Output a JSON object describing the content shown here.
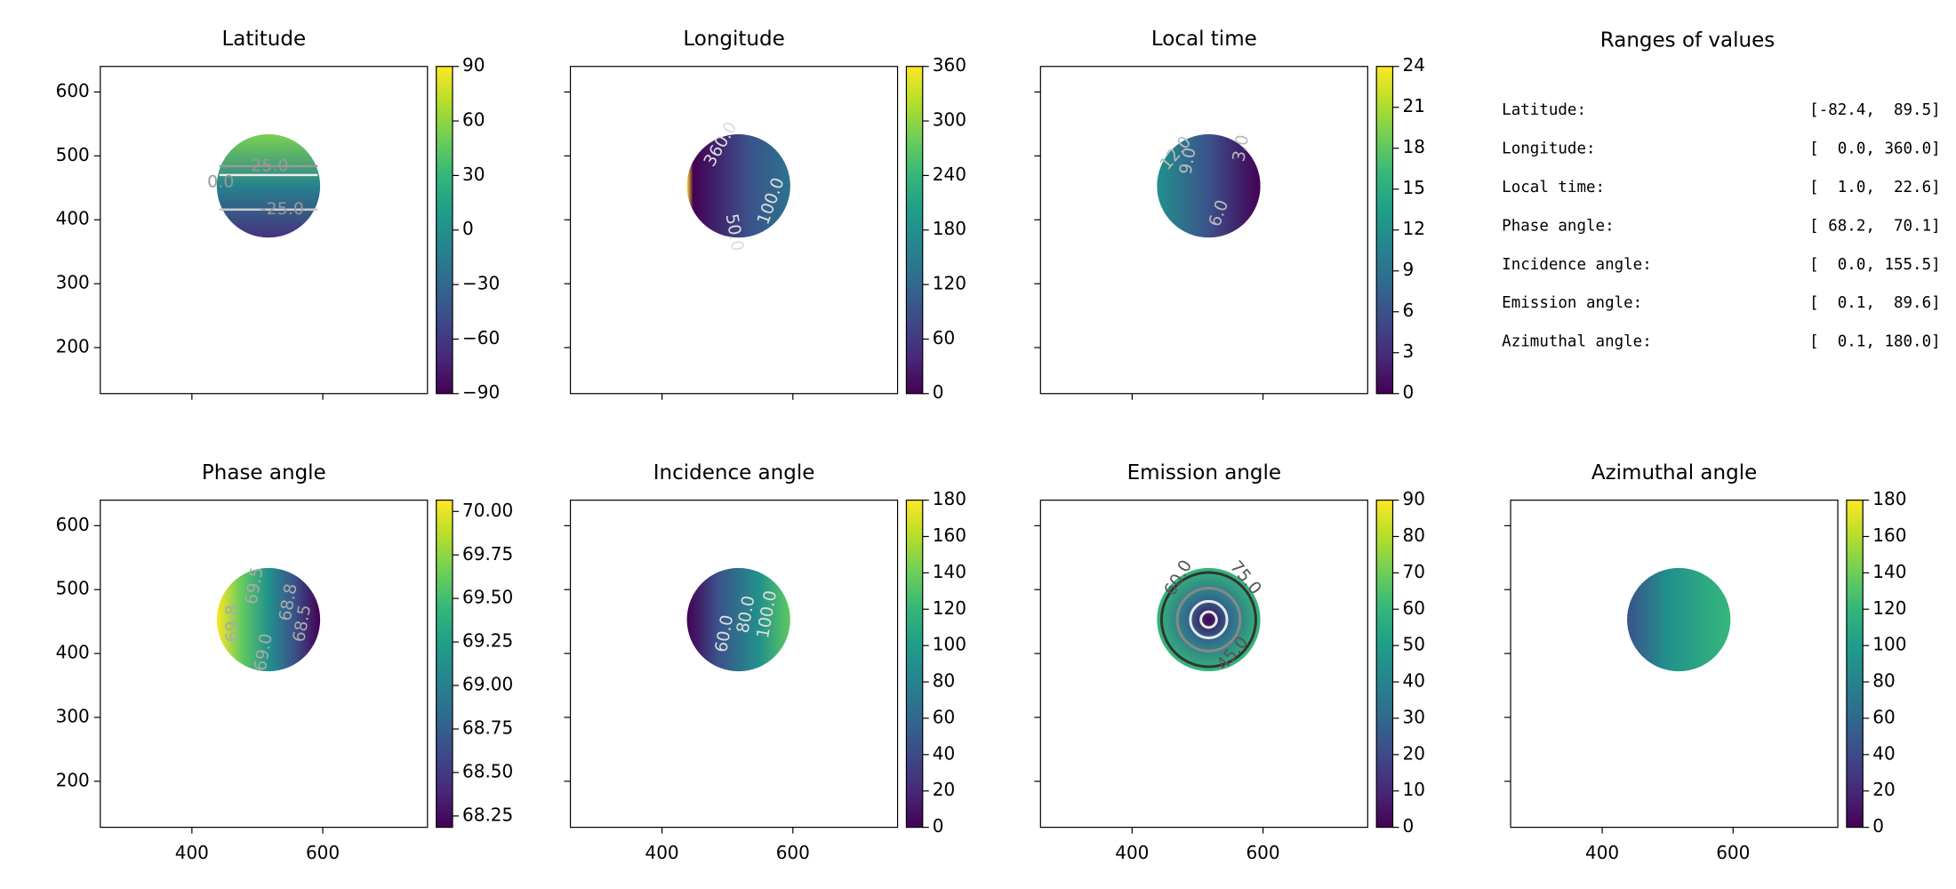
{
  "chart_data": [
    {
      "type": "heatmap",
      "title": "Latitude",
      "xlim": [
        260,
        760
      ],
      "ylim": [
        128,
        640
      ],
      "xticks": [
        400,
        600
      ],
      "yticks": [
        200,
        300,
        400,
        500,
        600
      ],
      "xtick_labels": false,
      "ytick_labels": true,
      "colormap": "viridis",
      "clim": [
        -90,
        90
      ],
      "cticks": [
        {
          "value": -90,
          "label": "−90"
        },
        {
          "value": -60,
          "label": "−60"
        },
        {
          "value": -30,
          "label": "−30"
        },
        0,
        30,
        60,
        90
      ],
      "contour_labels": [
        "25.0",
        "0.0",
        "-25.0"
      ]
    },
    {
      "type": "heatmap",
      "title": "Longitude",
      "xlim": [
        260,
        760
      ],
      "ylim": [
        128,
        640
      ],
      "xticks": [
        400,
        600
      ],
      "yticks": [
        200,
        300,
        400,
        500,
        600
      ],
      "xtick_labels": false,
      "ytick_labels": false,
      "colormap": "viridis",
      "clim": [
        0,
        360
      ],
      "cticks": [
        0,
        60,
        120,
        180,
        240,
        300,
        360
      ],
      "contour_labels": [
        "360.0",
        "50.0",
        "100.0"
      ]
    },
    {
      "type": "heatmap",
      "title": "Local time",
      "xlim": [
        260,
        760
      ],
      "ylim": [
        128,
        640
      ],
      "xticks": [
        400,
        600
      ],
      "yticks": [
        200,
        300,
        400,
        500,
        600
      ],
      "xtick_labels": false,
      "ytick_labels": false,
      "colormap": "viridis",
      "clim": [
        0,
        24
      ],
      "cticks": [
        0,
        3,
        6,
        9,
        12,
        15,
        18,
        21,
        24
      ],
      "contour_labels": [
        "12.0",
        "9.0",
        "6.0",
        "3.0"
      ]
    },
    {
      "type": "heatmap",
      "title": "Phase angle",
      "xlim": [
        260,
        760
      ],
      "ylim": [
        128,
        640
      ],
      "xticks": [
        400,
        600
      ],
      "yticks": [
        200,
        300,
        400,
        500,
        600
      ],
      "xtick_labels": true,
      "ytick_labels": true,
      "colormap": "viridis",
      "clim": [
        68.185,
        70.065
      ],
      "cticks": [
        68.25,
        {
          "value": 68.5,
          "label": "68.50"
        },
        68.75,
        {
          "value": 69,
          "label": "69.00"
        },
        69.25,
        {
          "value": 69.5,
          "label": "69.50"
        },
        69.75,
        {
          "value": 70,
          "label": "70.00"
        }
      ],
      "contour_labels": [
        "69.8",
        "69.5",
        "69.0",
        "68.8",
        "68.5"
      ]
    },
    {
      "type": "heatmap",
      "title": "Incidence angle",
      "xlim": [
        260,
        760
      ],
      "ylim": [
        128,
        640
      ],
      "xticks": [
        400,
        600
      ],
      "yticks": [
        200,
        300,
        400,
        500,
        600
      ],
      "xtick_labels": true,
      "ytick_labels": false,
      "colormap": "viridis",
      "clim": [
        0,
        180
      ],
      "cticks": [
        0,
        20,
        40,
        60,
        80,
        100,
        120,
        140,
        160,
        180
      ],
      "contour_labels": [
        "60.0",
        "80.0",
        "100.0"
      ]
    },
    {
      "type": "heatmap",
      "title": "Emission angle",
      "xlim": [
        260,
        760
      ],
      "ylim": [
        128,
        640
      ],
      "xticks": [
        400,
        600
      ],
      "yticks": [
        200,
        300,
        400,
        500,
        600
      ],
      "xtick_labels": true,
      "ytick_labels": false,
      "colormap": "viridis",
      "clim": [
        0,
        90
      ],
      "cticks": [
        0,
        10,
        20,
        30,
        40,
        50,
        60,
        70,
        80,
        90
      ],
      "contour_labels": [
        "60.0",
        "75.0",
        "45.0"
      ]
    },
    {
      "type": "heatmap",
      "title": "Azimuthal angle",
      "xlim": [
        260,
        760
      ],
      "ylim": [
        128,
        640
      ],
      "xticks": [
        400,
        600
      ],
      "yticks": [
        200,
        300,
        400,
        500,
        600
      ],
      "xtick_labels": true,
      "ytick_labels": false,
      "colormap": "viridis",
      "clim": [
        0,
        180
      ],
      "cticks": [
        0,
        20,
        40,
        60,
        80,
        100,
        120,
        140,
        160,
        180
      ]
    }
  ],
  "ranges": {
    "title": "Ranges of values",
    "rows": [
      {
        "label": "Latitude:",
        "value": "[-82.4,  89.5]"
      },
      {
        "label": "Longitude:",
        "value": "[  0.0, 360.0]"
      },
      {
        "label": "Local time:",
        "value": "[  1.0,  22.6]"
      },
      {
        "label": "Phase angle:",
        "value": "[ 68.2,  70.1]"
      },
      {
        "label": "Incidence angle:",
        "value": "[  0.0, 155.5]"
      },
      {
        "label": "Emission angle:",
        "value": "[  0.1,  89.6]"
      },
      {
        "label": "Azimuthal angle:",
        "value": "[  0.1, 180.0]"
      }
    ]
  }
}
